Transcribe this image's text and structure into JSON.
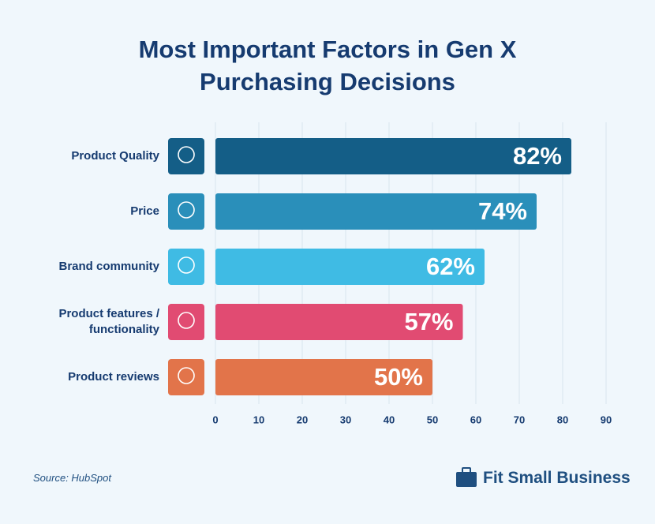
{
  "chart_data": {
    "type": "barh",
    "title": "Most Important Factors in Gen X Purchasing Decisions",
    "categories": [
      "Product Quality",
      "Price",
      "Brand community",
      "Product features / functionality",
      "Product reviews"
    ],
    "values": [
      82,
      74,
      62,
      57,
      50
    ],
    "value_labels": [
      "82%",
      "74%",
      "62%",
      "57%",
      "50%"
    ],
    "colors": [
      "#145e87",
      "#2a8fba",
      "#3fbbe4",
      "#e14b72",
      "#e2744a"
    ],
    "xlim": [
      0,
      90
    ],
    "xticks": [
      0,
      10,
      20,
      30,
      40,
      50,
      60,
      70,
      80,
      90
    ],
    "grid": true,
    "source": "Source:  HubSpot",
    "logo": "Fit Small Business"
  }
}
